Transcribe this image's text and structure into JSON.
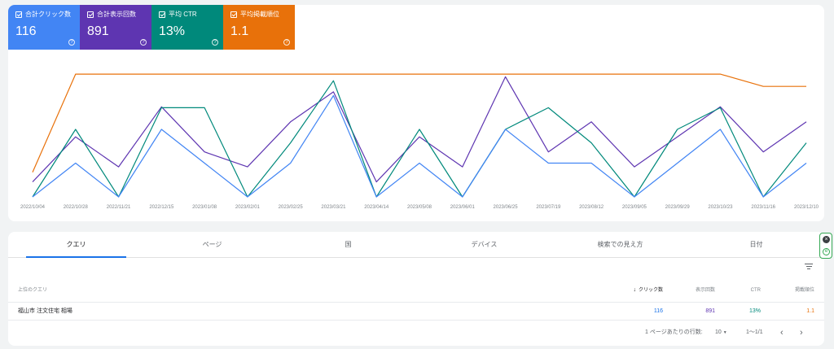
{
  "metrics": [
    {
      "key": "clicks",
      "label": "合計クリック数",
      "value": "116",
      "help": "?"
    },
    {
      "key": "impressions",
      "label": "合計表示回数",
      "value": "891",
      "help": "?"
    },
    {
      "key": "ctr",
      "label": "平均 CTR",
      "value": "13%",
      "help": "?"
    },
    {
      "key": "position",
      "label": "平均掲載順位",
      "value": "1.1",
      "help": "?"
    }
  ],
  "colors": {
    "clicks": "#4285f4",
    "impressions": "#5e35b1",
    "ctr": "#00897b",
    "position": "#e8710a"
  },
  "chart_data": {
    "type": "line",
    "x": [
      "2022/10/04",
      "2022/10/28",
      "2022/11/21",
      "2022/12/15",
      "2023/01/08",
      "2023/02/01",
      "2023/02/25",
      "2023/03/21",
      "2023/04/14",
      "2023/05/08",
      "2023/06/01",
      "2023/06/25",
      "2023/07/19",
      "2023/08/12",
      "2023/09/05",
      "2023/09/29",
      "2023/10/23",
      "2023/11/16",
      "2023/12/10"
    ],
    "series": [
      {
        "name": "合計クリック数",
        "values": [
          0,
          1,
          0,
          2,
          1,
          0,
          1,
          3,
          0,
          1,
          0,
          2,
          1,
          1,
          0,
          1,
          2,
          0,
          1
        ]
      },
      {
        "name": "合計表示回数",
        "values": [
          1,
          4,
          2,
          6,
          3,
          2,
          5,
          7,
          1,
          4,
          2,
          8,
          3,
          5,
          2,
          4,
          6,
          3,
          5
        ]
      },
      {
        "name": "平均 CTR",
        "values": [
          0,
          25,
          0,
          33,
          33,
          0,
          20,
          43,
          0,
          25,
          0,
          25,
          33,
          20,
          0,
          25,
          33,
          0,
          20
        ]
      },
      {
        "name": "平均掲載順位",
        "values": [
          1.8,
          1.0,
          1.0,
          1.0,
          1.0,
          1.0,
          1.0,
          1.0,
          1.0,
          1.0,
          1.0,
          1.0,
          1.0,
          1.0,
          1.0,
          1.0,
          1.0,
          1.1,
          1.1
        ]
      }
    ],
    "grid": false,
    "legend": "top-left"
  },
  "tabs": [
    {
      "label": "クエリ",
      "active": true
    },
    {
      "label": "ページ"
    },
    {
      "label": "国"
    },
    {
      "label": "デバイス"
    },
    {
      "label": "検索での見え方"
    },
    {
      "label": "日付"
    }
  ],
  "table": {
    "columns": {
      "query": "上位のクエリ",
      "clicks": "クリック数",
      "impressions": "表示回数",
      "ctr": "CTR",
      "position": "掲載順位"
    },
    "sort_arrow": "↓",
    "rows": [
      {
        "query": "福山市 注文住宅 相場",
        "clicks": "116",
        "impressions": "891",
        "ctr": "13%",
        "position": "1.1"
      }
    ]
  },
  "pager": {
    "rows_label": "1 ページあたりの行数:",
    "rows_value": "10",
    "range": "1〜1/1",
    "prev": "‹",
    "next": "›"
  }
}
